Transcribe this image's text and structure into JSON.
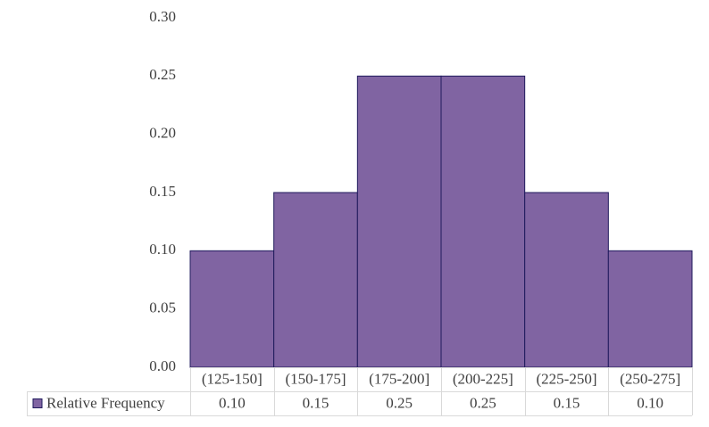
{
  "chart_data": {
    "type": "bar",
    "categories": [
      "(125-150]",
      "(150-175]",
      "(175-200]",
      "(200-225]",
      "(225-250]",
      "(250-275]"
    ],
    "series": [
      {
        "name": "Relative Frequency",
        "values": [
          0.1,
          0.15,
          0.25,
          0.25,
          0.15,
          0.1
        ],
        "value_labels": [
          "0.10",
          "0.15",
          "0.25",
          "0.25",
          "0.15",
          "0.10"
        ],
        "color": "#8064a2"
      }
    ],
    "yticks": [
      "0.00",
      "0.05",
      "0.10",
      "0.15",
      "0.20",
      "0.25",
      "0.30"
    ],
    "ylim": [
      0,
      0.3
    ],
    "grid": false,
    "data_table": true,
    "bar_gap": 0
  }
}
